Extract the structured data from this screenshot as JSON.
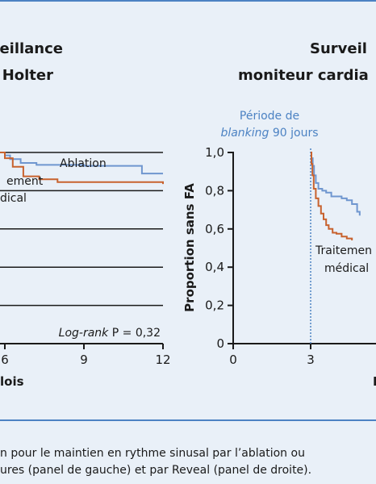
{
  "colors": {
    "ablation": "#6f96cf",
    "medical": "#c8622e",
    "frame": "#4c82c3",
    "blanking": "#4c82c3",
    "background": "#e9f0f8"
  },
  "caption": {
    "line1": "n pour le maintien en rythme sinusal par l’ablation ou",
    "line2": "ures (panel de gauche) et par Reveal (panel de droite)."
  },
  "chart_data": [
    {
      "type": "line",
      "title_lines": [
        "eillance",
        "Holter"
      ],
      "xlabel": "lois",
      "x_ticks": [
        "6",
        "9",
        "12"
      ],
      "xlim": [
        3,
        12
      ],
      "ylim": [
        0,
        1
      ],
      "annotation_logrank_italic": "Log-rank",
      "annotation_logrank_value": " P = 0,32",
      "label_ablation": "Ablation",
      "label_medical_lines": [
        "ement",
        "dical"
      ],
      "series": [
        {
          "name": "Ablation",
          "color_key": "ablation",
          "x": [
            3,
            5.8,
            6.0,
            6.2,
            6.6,
            7.2,
            9.0,
            11.2,
            12
          ],
          "y": [
            1.0,
            1.0,
            0.985,
            0.965,
            0.945,
            0.935,
            0.93,
            0.89,
            0.89
          ]
        },
        {
          "name": "Traitement médical",
          "color_key": "medical",
          "x": [
            3,
            5.8,
            6.0,
            6.3,
            6.7,
            7.3,
            8.0,
            12
          ],
          "y": [
            1.0,
            1.0,
            0.97,
            0.925,
            0.875,
            0.86,
            0.845,
            0.835
          ]
        }
      ]
    },
    {
      "type": "line",
      "title_lines": [
        "Surveil",
        "moniteur cardia"
      ],
      "ylabel": "Proportion sans FA",
      "xlabel": "N",
      "x_ticks": [
        "0",
        "3"
      ],
      "y_ticks": [
        "0",
        "0,2",
        "0,4",
        "0,6",
        "0,8",
        "1,0"
      ],
      "xlim": [
        0,
        4.9
      ],
      "ylim": [
        0,
        1
      ],
      "blanking_line1": "Période de",
      "blanking_line2_italic": "blanking",
      "blanking_line2_rest": " 90 jours",
      "label_medical_lines": [
        "Traitemen",
        "médical"
      ],
      "series": [
        {
          "name": "Ablation",
          "color_key": "ablation",
          "x": [
            3.0,
            3.03,
            3.08,
            3.13,
            3.2,
            3.3,
            3.45,
            3.6,
            3.8,
            4.0,
            4.2,
            4.4,
            4.6,
            4.8,
            4.9
          ],
          "y": [
            1.0,
            0.97,
            0.93,
            0.88,
            0.84,
            0.81,
            0.8,
            0.79,
            0.77,
            0.77,
            0.76,
            0.75,
            0.73,
            0.69,
            0.67
          ]
        },
        {
          "name": "Traitement médical",
          "color_key": "medical",
          "x": [
            3.0,
            3.03,
            3.07,
            3.12,
            3.2,
            3.3,
            3.4,
            3.5,
            3.6,
            3.7,
            3.85,
            4.0,
            4.2,
            4.4,
            4.6
          ],
          "y": [
            1.0,
            0.94,
            0.88,
            0.81,
            0.76,
            0.72,
            0.68,
            0.65,
            0.62,
            0.6,
            0.58,
            0.575,
            0.56,
            0.55,
            0.54
          ]
        }
      ]
    }
  ]
}
